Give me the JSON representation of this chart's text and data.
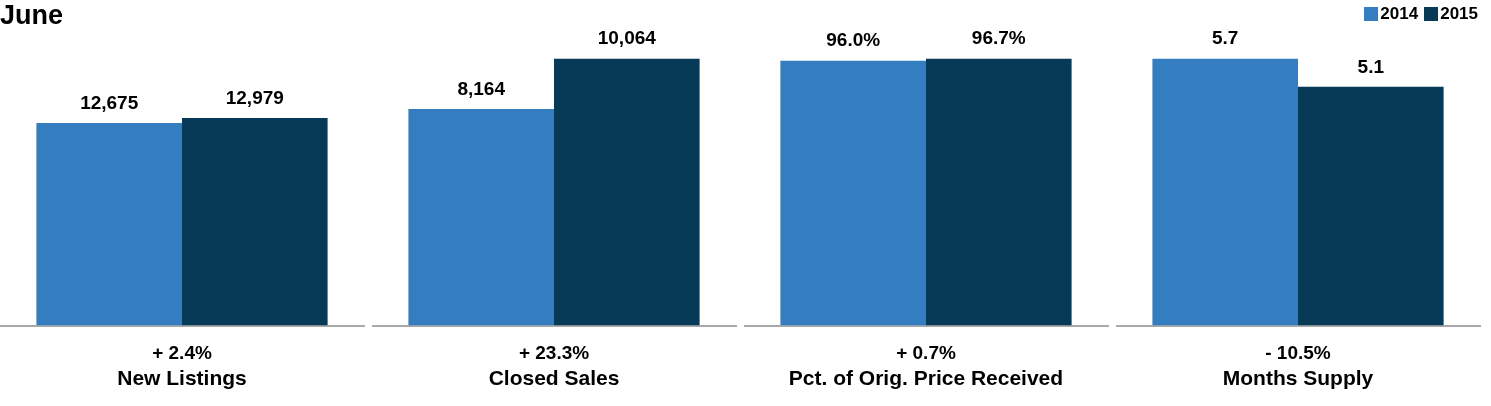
{
  "chart_data": [
    {
      "type": "bar",
      "title": "June",
      "categories": [
        null
      ],
      "xlabel": "New Listings",
      "annotations": [
        "+ 2.4%"
      ],
      "grid": false,
      "legend": false,
      "series": [
        {
          "color": "#337dc0",
          "values": [
            12675
          ],
          "value_labels": [
            "12,675"
          ]
        },
        {
          "color": "#063a56",
          "values": [
            12979
          ],
          "value_labels": [
            "12,979"
          ]
        }
      ]
    },
    {
      "type": "bar",
      "categories": [
        null
      ],
      "xlabel": "Closed Sales",
      "annotations": [
        "+ 23.3%"
      ],
      "grid": false,
      "legend": false,
      "series": [
        {
          "color": "#337dc0",
          "values": [
            8164
          ],
          "value_labels": [
            "8,164"
          ]
        },
        {
          "color": "#063a56",
          "values": [
            10064
          ],
          "value_labels": [
            "10,064"
          ]
        }
      ]
    },
    {
      "type": "bar",
      "categories": [
        null
      ],
      "xlabel": "Pct. of Orig. Price Received",
      "annotations": [
        "+ 0.7%"
      ],
      "grid": false,
      "legend": false,
      "series": [
        {
          "color": "#337dc0",
          "values": [
            96.0
          ],
          "value_labels": [
            "96.0%"
          ]
        },
        {
          "color": "#063a56",
          "values": [
            96.7
          ],
          "value_labels": [
            "96.7%"
          ]
        }
      ]
    },
    {
      "type": "bar",
      "categories": [
        null
      ],
      "xlabel": "Months Supply",
      "annotations": [
        "- 10.5%"
      ],
      "grid": false,
      "legend": "top right",
      "series": [
        {
          "name": "2014",
          "color": "#337dc0",
          "values": [
            5.7
          ],
          "value_labels": [
            "5.7"
          ]
        },
        {
          "name": "2015",
          "color": "#063a56",
          "values": [
            5.1
          ],
          "value_labels": [
            "5.1"
          ]
        }
      ]
    }
  ]
}
